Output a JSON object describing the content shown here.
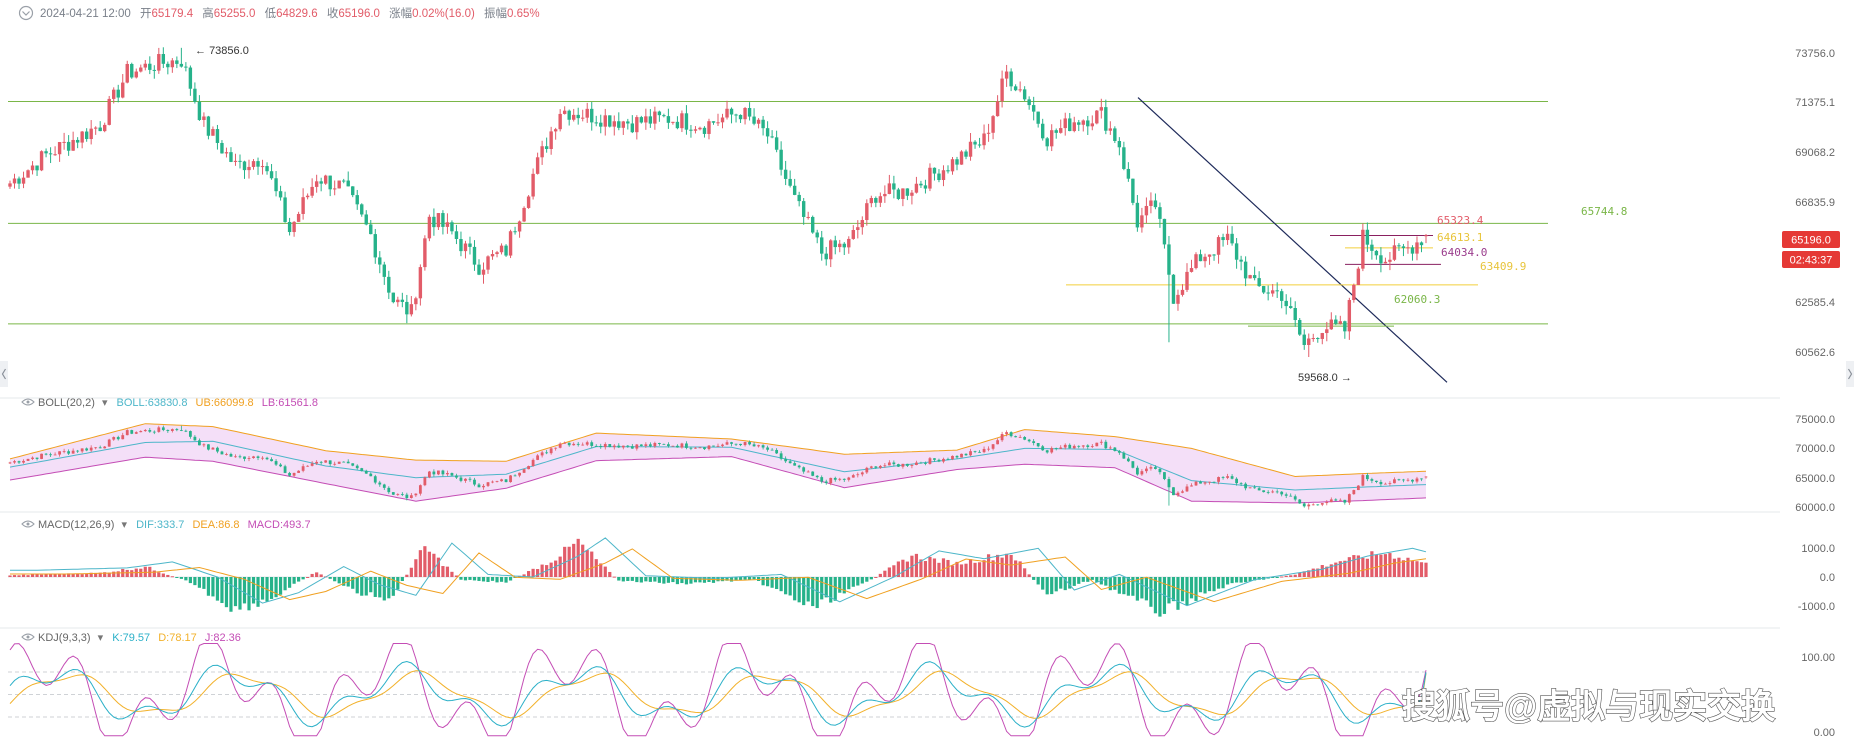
{
  "header": {
    "datetime": "2024-04-21 12:00",
    "open_label": "开",
    "open": "65179.4",
    "high_label": "高",
    "high": "65255.0",
    "low_label": "低",
    "low": "64829.6",
    "close_label": "收",
    "close": "65196.0",
    "change_label": "涨幅",
    "change": "0.02%(16.0)",
    "amplitude_label": "振幅",
    "amplitude": "0.65%"
  },
  "price_axis": {
    "ticks": [
      "73756.0",
      "71375.1",
      "69068.2",
      "66835.9",
      "62585.4",
      "60562.6"
    ],
    "current_price": "65196.0",
    "countdown": "02:43:37"
  },
  "annotations": {
    "high_marker": "73856.0",
    "low_marker": "59568.0",
    "resistance": "65744.8",
    "fib_levels": [
      "65323.4",
      "64613.1",
      "64034.0",
      "63409.9",
      "62060.3"
    ]
  },
  "boll": {
    "title": "BOLL(20,2)",
    "boll_label": "BOLL:63830.8",
    "ub_label": "UB:66099.8",
    "lb_label": "LB:61561.8",
    "ticks": [
      "75000.0",
      "70000.0",
      "65000.0",
      "60000.0"
    ]
  },
  "macd": {
    "title": "MACD(12,26,9)",
    "dif_label": "DIF:333.7",
    "dea_label": "DEA:86.8",
    "macd_label": "MACD:493.7",
    "ticks": [
      "1000.0",
      "0.0",
      "-1000.0"
    ]
  },
  "kdj": {
    "title": "KDJ(9,3,3)",
    "k_label": "K:79.57",
    "d_label": "D:78.17",
    "j_label": "J:82.36",
    "ticks": [
      "100.00",
      "0.00"
    ]
  },
  "watermark": "搜狐号@虚拟与现实交换",
  "colors": {
    "up": "#e25c69",
    "down": "#26b28a",
    "ma": "#f0a020",
    "mid": "#4db6c9",
    "band_fill": "#f4dff8",
    "kdj_k": "#2bb0c8",
    "kdj_d": "#f2b12a",
    "kdj_j": "#c44db5",
    "green_line": "#7ab648",
    "yellow_line": "#f2cf3b",
    "purple_line": "#8a2060",
    "navy_line": "#1e2a5a",
    "countdown_bg": "#e53935"
  },
  "chart_data": {
    "type": "candlestick",
    "title": "",
    "ylim": [
      59000,
      74300
    ],
    "highest": 73856.0,
    "lowest": 59568.0,
    "last": {
      "open": 65179.4,
      "high": 65255.0,
      "low": 64829.6,
      "close": 65196.0
    },
    "horizontal_levels": [
      71375.1,
      65744.8,
      61100.0
    ],
    "anchors": [
      {
        "i": 0,
        "p": 67600
      },
      {
        "i": 8,
        "p": 68900
      },
      {
        "i": 14,
        "p": 69600
      },
      {
        "i": 20,
        "p": 70300
      },
      {
        "i": 26,
        "p": 72700
      },
      {
        "i": 32,
        "p": 73100
      },
      {
        "i": 38,
        "p": 73300
      },
      {
        "i": 43,
        "p": 70300
      },
      {
        "i": 50,
        "p": 68400
      },
      {
        "i": 56,
        "p": 68800
      },
      {
        "i": 62,
        "p": 65400
      },
      {
        "i": 68,
        "p": 67900
      },
      {
        "i": 74,
        "p": 67400
      },
      {
        "i": 80,
        "p": 65200
      },
      {
        "i": 85,
        "p": 62200
      },
      {
        "i": 89,
        "p": 61600
      },
      {
        "i": 93,
        "p": 66100
      },
      {
        "i": 98,
        "p": 65300
      },
      {
        "i": 104,
        "p": 63800
      },
      {
        "i": 110,
        "p": 64500
      },
      {
        "i": 116,
        "p": 68000
      },
      {
        "i": 122,
        "p": 71000
      },
      {
        "i": 130,
        "p": 70700
      },
      {
        "i": 138,
        "p": 70400
      },
      {
        "i": 146,
        "p": 70600
      },
      {
        "i": 154,
        "p": 70300
      },
      {
        "i": 162,
        "p": 70900
      },
      {
        "i": 168,
        "p": 69800
      },
      {
        "i": 174,
        "p": 66800
      },
      {
        "i": 180,
        "p": 64400
      },
      {
        "i": 186,
        "p": 64800
      },
      {
        "i": 192,
        "p": 67100
      },
      {
        "i": 198,
        "p": 67200
      },
      {
        "i": 204,
        "p": 67900
      },
      {
        "i": 210,
        "p": 68700
      },
      {
        "i": 216,
        "p": 69600
      },
      {
        "i": 221,
        "p": 72700
      },
      {
        "i": 225,
        "p": 71700
      },
      {
        "i": 230,
        "p": 69700
      },
      {
        "i": 236,
        "p": 70500
      },
      {
        "i": 242,
        "p": 70800
      },
      {
        "i": 246,
        "p": 69400
      },
      {
        "i": 250,
        "p": 65800
      },
      {
        "i": 254,
        "p": 66600
      },
      {
        "i": 258,
        "p": 62400
      },
      {
        "i": 264,
        "p": 64200
      },
      {
        "i": 270,
        "p": 65000
      },
      {
        "i": 276,
        "p": 62800
      },
      {
        "i": 282,
        "p": 62500
      },
      {
        "i": 287,
        "p": 60100
      },
      {
        "i": 291,
        "p": 61000
      },
      {
        "i": 296,
        "p": 60800
      },
      {
        "i": 300,
        "p": 65100
      },
      {
        "i": 305,
        "p": 64100
      },
      {
        "i": 310,
        "p": 64600
      },
      {
        "i": 314,
        "p": 65196
      }
    ],
    "boll_anchors": [
      {
        "i": 0,
        "mid": 66800,
        "ub": 68200,
        "lb": 64600
      },
      {
        "i": 30,
        "mid": 71000,
        "ub": 74200,
        "lb": 68500
      },
      {
        "i": 45,
        "mid": 71200,
        "ub": 73700,
        "lb": 67800
      },
      {
        "i": 70,
        "mid": 67000,
        "ub": 69600,
        "lb": 64000
      },
      {
        "i": 90,
        "mid": 65000,
        "ub": 68000,
        "lb": 61000
      },
      {
        "i": 110,
        "mid": 65600,
        "ub": 67800,
        "lb": 63200
      },
      {
        "i": 130,
        "mid": 70300,
        "ub": 72600,
        "lb": 67900
      },
      {
        "i": 160,
        "mid": 70200,
        "ub": 71600,
        "lb": 68600
      },
      {
        "i": 185,
        "mid": 66000,
        "ub": 69000,
        "lb": 63300
      },
      {
        "i": 210,
        "mid": 68200,
        "ub": 69700,
        "lb": 66400
      },
      {
        "i": 225,
        "mid": 70000,
        "ub": 73200,
        "lb": 67300
      },
      {
        "i": 245,
        "mid": 69800,
        "ub": 72000,
        "lb": 66700
      },
      {
        "i": 262,
        "mid": 64500,
        "ub": 70000,
        "lb": 61000
      },
      {
        "i": 285,
        "mid": 62900,
        "ub": 65200,
        "lb": 60700
      },
      {
        "i": 300,
        "mid": 63400,
        "ub": 65700,
        "lb": 61100
      },
      {
        "i": 314,
        "mid": 63830.8,
        "ub": 66099.8,
        "lb": 61561.8
      }
    ],
    "macd_anchors": [
      {
        "i": 0,
        "h": 60
      },
      {
        "i": 20,
        "h": 150
      },
      {
        "i": 30,
        "h": 380
      },
      {
        "i": 40,
        "h": -200
      },
      {
        "i": 50,
        "h": -1200
      },
      {
        "i": 58,
        "h": -800
      },
      {
        "i": 68,
        "h": 200
      },
      {
        "i": 76,
        "h": -500
      },
      {
        "i": 84,
        "h": -900
      },
      {
        "i": 92,
        "h": 1100
      },
      {
        "i": 100,
        "h": -100
      },
      {
        "i": 110,
        "h": -200
      },
      {
        "i": 120,
        "h": 600
      },
      {
        "i": 126,
        "h": 1300
      },
      {
        "i": 135,
        "h": -150
      },
      {
        "i": 150,
        "h": -250
      },
      {
        "i": 165,
        "h": -100
      },
      {
        "i": 178,
        "h": -1150
      },
      {
        "i": 190,
        "h": -200
      },
      {
        "i": 200,
        "h": 800
      },
      {
        "i": 210,
        "h": 500
      },
      {
        "i": 222,
        "h": 900
      },
      {
        "i": 230,
        "h": -700
      },
      {
        "i": 240,
        "h": -100
      },
      {
        "i": 255,
        "h": -1300
      },
      {
        "i": 270,
        "h": -300
      },
      {
        "i": 285,
        "h": 100
      },
      {
        "i": 295,
        "h": 600
      },
      {
        "i": 305,
        "h": 900
      },
      {
        "i": 314,
        "h": 493.7
      }
    ],
    "kdj_last": {
      "k": 79.57,
      "d": 78.17,
      "j": 82.36
    }
  }
}
